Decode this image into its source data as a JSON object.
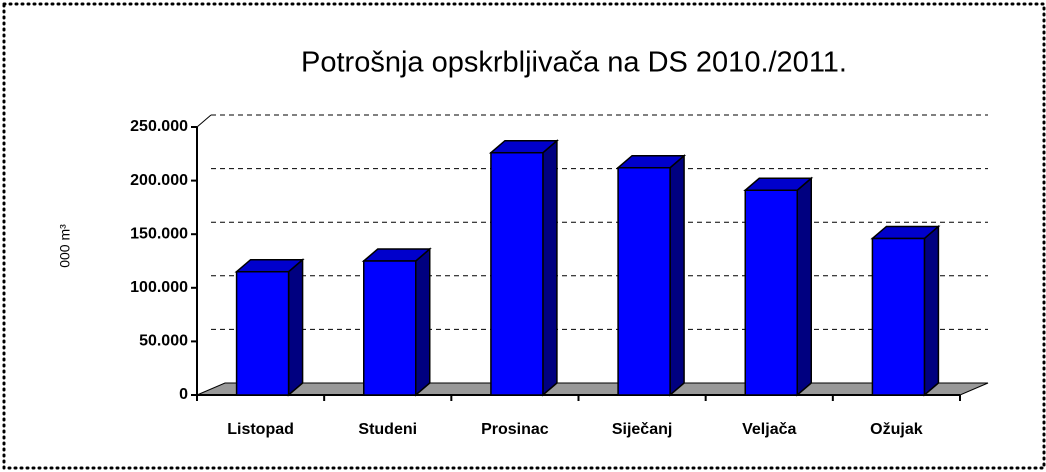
{
  "chart_data": {
    "type": "bar3d",
    "title": "Potrošnja opskrbljivača na DS 2010./2011.",
    "ylabel": "000 m³",
    "categories": [
      "Listopad",
      "Studeni",
      "Prosinac",
      "Siječanj",
      "Veljača",
      "Ožujak"
    ],
    "values": [
      115000,
      125000,
      226000,
      212000,
      191000,
      146000
    ],
    "color": "#0000ff",
    "ylim": [
      0,
      250000
    ],
    "yticks": [
      {
        "value": 0,
        "label": "0"
      },
      {
        "value": 50000,
        "label": "50.000"
      },
      {
        "value": 100000,
        "label": "100.000"
      },
      {
        "value": 150000,
        "label": "150.000"
      },
      {
        "value": 200000,
        "label": "200.000"
      },
      {
        "value": 250000,
        "label": "250.000"
      }
    ],
    "grid": true
  }
}
